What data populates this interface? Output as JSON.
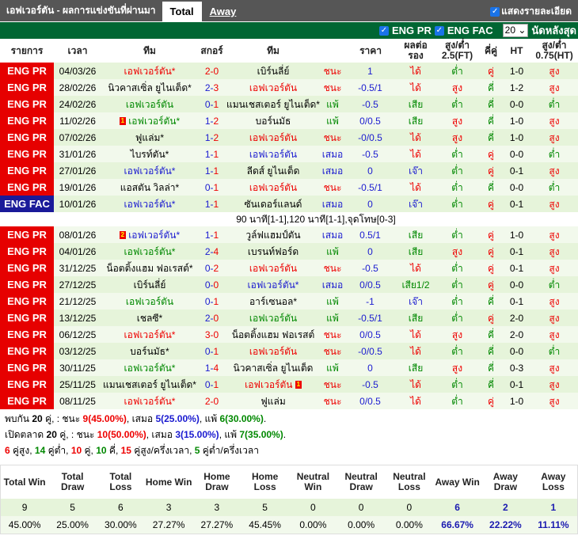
{
  "header": {
    "title": "เอฟเวอร์ตัน - ผลการแข่งขันที่ผ่านมา",
    "tabs": [
      {
        "label": "Total",
        "active": true
      },
      {
        "label": "Away",
        "active": false
      }
    ],
    "show_detail": "แสดงรายละเอียด"
  },
  "filters": {
    "eng_pr": "ENG PR",
    "eng_fac": "ENG FAC",
    "count": "20",
    "last_label": "นัดหลังสุด"
  },
  "columns": [
    "รายการ",
    "เวลา",
    "ทีม",
    "สกอร์",
    "ทีม",
    "ราคา",
    "ผลต่อรอง",
    "สูง/ต่ำ 2.5(FT)",
    "คี่คู่",
    "HT",
    "สูง/ต่ำ 0.75(HT)"
  ],
  "colors": {
    "win": "#ee0000",
    "draw": "#1a1ad0",
    "loss": "#008800",
    "league_pr": "#e60000",
    "league_fac": "#1a1a99",
    "header_green": "#006633"
  },
  "rows": [
    {
      "league": "ENG PR",
      "date": "04/03/26",
      "home": "เอฟเวอร์ตัน*",
      "score": "2-0",
      "away": "เบิร์นลี่ย์",
      "ev": "home",
      "result": "ชนะ",
      "odds": "1",
      "hc": "ได้",
      "ou": "ต่ำ",
      "oe": "คู่",
      "ht": "1-0",
      "htou": "สูง"
    },
    {
      "league": "ENG PR",
      "date": "28/02/26",
      "home": "นิวคาสเซิ่ล ยูไนเต็ด*",
      "score": "2-3",
      "away": "เอฟเวอร์ตัน",
      "ev": "away",
      "result": "ชนะ",
      "odds": "-0.5/1",
      "hc": "ได้",
      "ou": "สูง",
      "oe": "คี่",
      "ht": "1-2",
      "htou": "สูง"
    },
    {
      "league": "ENG PR",
      "date": "24/02/26",
      "home": "เอฟเวอร์ตัน",
      "score": "0-1",
      "away": "แมนเชสเตอร์ ยูไนเต็ด*",
      "ev": "home",
      "result": "แพ้",
      "odds": "-0.5",
      "hc": "เสีย",
      "ou": "ต่ำ",
      "oe": "คี่",
      "ht": "0-0",
      "htou": "ต่ำ"
    },
    {
      "league": "ENG PR",
      "date": "11/02/26",
      "home": "เอฟเวอร์ตัน*",
      "home_card": "1",
      "score": "1-2",
      "away": "บอร์นมัธ",
      "ev": "home",
      "result": "แพ้",
      "odds": "0/0.5",
      "hc": "เสีย",
      "ou": "สูง",
      "oe": "คี่",
      "ht": "1-0",
      "htou": "สูง"
    },
    {
      "league": "ENG PR",
      "date": "07/02/26",
      "home": "ฟูแล่ม*",
      "score": "1-2",
      "away": "เอฟเวอร์ตัน",
      "ev": "away",
      "result": "ชนะ",
      "odds": "-0/0.5",
      "hc": "ได้",
      "ou": "สูง",
      "oe": "คี่",
      "ht": "1-0",
      "htou": "สูง"
    },
    {
      "league": "ENG PR",
      "date": "31/01/26",
      "home": "ไบรท์ตัน*",
      "score": "1-1",
      "away": "เอฟเวอร์ตัน",
      "ev": "away",
      "result": "เสมอ",
      "odds": "-0.5",
      "hc": "ได้",
      "ou": "ต่ำ",
      "oe": "คู่",
      "ht": "0-0",
      "htou": "ต่ำ"
    },
    {
      "league": "ENG PR",
      "date": "27/01/26",
      "home": "เอฟเวอร์ตัน*",
      "score": "1-1",
      "away": "ลีดส์ ยูไนเต็ด",
      "ev": "home",
      "result": "เสมอ",
      "odds": "0",
      "hc": "เจ๊า",
      "ou": "ต่ำ",
      "oe": "คู่",
      "ht": "0-1",
      "htou": "สูง"
    },
    {
      "league": "ENG PR",
      "date": "19/01/26",
      "home": "แอสตัน วิลล่า*",
      "score": "0-1",
      "away": "เอฟเวอร์ตัน",
      "ev": "away",
      "result": "ชนะ",
      "odds": "-0.5/1",
      "hc": "ได้",
      "ou": "ต่ำ",
      "oe": "คี่",
      "ht": "0-0",
      "htou": "ต่ำ"
    },
    {
      "league": "ENG FAC",
      "date": "10/01/26",
      "home": "เอฟเวอร์ตัน*",
      "score": "1-1",
      "away": "ซันเดอร์แลนด์",
      "ev": "home",
      "result": "เสมอ",
      "odds": "0",
      "hc": "เจ๊า",
      "ou": "ต่ำ",
      "oe": "คู่",
      "ht": "0-1",
      "htou": "สูง",
      "note": "90 นาที[1-1],120 นาที[1-1],จุดโทษ[0-3]"
    },
    {
      "league": "ENG PR",
      "date": "08/01/26",
      "home": "เอฟเวอร์ตัน*",
      "home_card": "2",
      "score": "1-1",
      "away": "วูล์ฟแฮมป์ตัน",
      "ev": "home",
      "result": "เสมอ",
      "odds": "0.5/1",
      "hc": "เสีย",
      "ou": "ต่ำ",
      "oe": "คู่",
      "ht": "1-0",
      "htou": "สูง"
    },
    {
      "league": "ENG PR",
      "date": "04/01/26",
      "home": "เอฟเวอร์ตัน*",
      "score": "2-4",
      "away": "เบรนท์ฟอร์ด",
      "ev": "home",
      "result": "แพ้",
      "odds": "0",
      "hc": "เสีย",
      "ou": "สูง",
      "oe": "คู่",
      "ht": "0-1",
      "htou": "สูง"
    },
    {
      "league": "ENG PR",
      "date": "31/12/25",
      "home": "น็อตติ้งแฮม ฟอเรสต์*",
      "score": "0-2",
      "away": "เอฟเวอร์ตัน",
      "ev": "away",
      "result": "ชนะ",
      "odds": "-0.5",
      "hc": "ได้",
      "ou": "ต่ำ",
      "oe": "คู่",
      "ht": "0-1",
      "htou": "สูง"
    },
    {
      "league": "ENG PR",
      "date": "27/12/25",
      "home": "เบิร์นลี่ย์",
      "score": "0-0",
      "away": "เอฟเวอร์ตัน*",
      "ev": "away",
      "result": "เสมอ",
      "odds": "0/0.5",
      "hc": "เสีย1/2",
      "ou": "ต่ำ",
      "oe": "คู่",
      "ht": "0-0",
      "htou": "ต่ำ"
    },
    {
      "league": "ENG PR",
      "date": "21/12/25",
      "home": "เอฟเวอร์ตัน",
      "score": "0-1",
      "away": "อาร์เซนอล*",
      "ev": "home",
      "result": "แพ้",
      "odds": "-1",
      "hc": "เจ๊า",
      "ou": "ต่ำ",
      "oe": "คี่",
      "ht": "0-1",
      "htou": "สูง"
    },
    {
      "league": "ENG PR",
      "date": "13/12/25",
      "home": "เชลซี*",
      "score": "2-0",
      "away": "เอฟเวอร์ตัน",
      "ev": "away",
      "result": "แพ้",
      "odds": "-0.5/1",
      "hc": "เสีย",
      "ou": "ต่ำ",
      "oe": "คู่",
      "ht": "2-0",
      "htou": "สูง"
    },
    {
      "league": "ENG PR",
      "date": "06/12/25",
      "home": "เอฟเวอร์ตัน*",
      "score": "3-0",
      "away": "น็อตติ้งแฮม ฟอเรสต์",
      "ev": "home",
      "result": "ชนะ",
      "odds": "0/0.5",
      "hc": "ได้",
      "ou": "สูง",
      "oe": "คี่",
      "ht": "2-0",
      "htou": "สูง"
    },
    {
      "league": "ENG PR",
      "date": "03/12/25",
      "home": "บอร์นมัธ*",
      "score": "0-1",
      "away": "เอฟเวอร์ตัน",
      "ev": "away",
      "result": "ชนะ",
      "odds": "-0/0.5",
      "hc": "ได้",
      "ou": "ต่ำ",
      "oe": "คี่",
      "ht": "0-0",
      "htou": "ต่ำ"
    },
    {
      "league": "ENG PR",
      "date": "30/11/25",
      "home": "เอฟเวอร์ตัน*",
      "score": "1-4",
      "away": "นิวคาสเซิ่ล ยูไนเต็ด",
      "ev": "home",
      "result": "แพ้",
      "odds": "0",
      "hc": "เสีย",
      "ou": "สูง",
      "oe": "คี่",
      "ht": "0-3",
      "htou": "สูง"
    },
    {
      "league": "ENG PR",
      "date": "25/11/25",
      "home": "แมนเชสเตอร์ ยูไนเต็ด*",
      "score": "0-1",
      "away": "เอฟเวอร์ตัน",
      "away_card": "1",
      "ev": "away",
      "result": "ชนะ",
      "odds": "-0.5",
      "hc": "ได้",
      "ou": "ต่ำ",
      "oe": "คี่",
      "ht": "0-1",
      "htou": "สูง"
    },
    {
      "league": "ENG PR",
      "date": "08/11/25",
      "home": "เอฟเวอร์ตัน*",
      "score": "2-0",
      "away": "ฟูแล่ม",
      "ev": "home",
      "result": "ชนะ",
      "odds": "0/0.5",
      "hc": "ได้",
      "ou": "ต่ำ",
      "oe": "คู่",
      "ht": "1-0",
      "htou": "สูง"
    }
  ],
  "summary": {
    "line1": {
      "a": "พบกัน ",
      "n": "20",
      "b": " คู่, : ชนะ ",
      "w": "9(45.00%)",
      "c": ", เสมอ ",
      "d": "5(25.00%)",
      "e": ", แพ้ ",
      "l": "6(30.00%)",
      "f": "."
    },
    "line2": {
      "a": "เปิดตลาด ",
      "n": "20",
      "b": " คู่, : ชนะ ",
      "w": "10(50.00%)",
      "c": ", เสมอ ",
      "d": "3(15.00%)",
      "e": ", แพ้ ",
      "l": "7(35.00%)",
      "f": "."
    },
    "line3": [
      {
        "n": "6",
        "t": " คู่สูง, ",
        "c": "red"
      },
      {
        "n": "14",
        "t": " คู่ต่ำ, ",
        "c": "green"
      },
      {
        "n": "10",
        "t": " คู่, ",
        "c": "red"
      },
      {
        "n": "10",
        "t": " คี่, ",
        "c": "green"
      },
      {
        "n": "15",
        "t": " คู่สูง/ครึ่งเวลา, ",
        "c": "red"
      },
      {
        "n": "5",
        "t": " คู่ต่ำ/ครึ่งเวลา",
        "c": "green"
      }
    ]
  },
  "stats": {
    "headers": [
      "Total Win",
      "Total Draw",
      "Total Loss",
      "Home Win",
      "Home Draw",
      "Home Loss",
      "Neutral Win",
      "Neutral Draw",
      "Neutral Loss",
      "Away Win",
      "Away Draw",
      "Away Loss"
    ],
    "counts": [
      "9",
      "5",
      "6",
      "3",
      "3",
      "5",
      "0",
      "0",
      "0",
      "6",
      "2",
      "1"
    ],
    "percents": [
      "45.00%",
      "25.00%",
      "30.00%",
      "27.27%",
      "27.27%",
      "45.45%",
      "0.00%",
      "0.00%",
      "0.00%",
      "66.67%",
      "22.22%",
      "11.11%"
    ]
  }
}
